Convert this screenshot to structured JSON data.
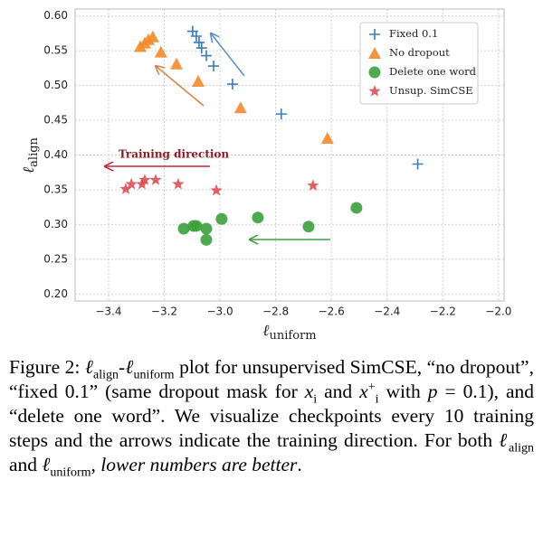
{
  "chart_data": {
    "type": "scatter",
    "xlabel": [
      "ℓ",
      "uniform"
    ],
    "ylabel": [
      "ℓ",
      "align"
    ],
    "xlim": [
      -3.52,
      -1.98
    ],
    "ylim": [
      0.19,
      0.61
    ],
    "xticks": [
      {
        "value": -3.4,
        "label": "−3.4"
      },
      {
        "value": -3.2,
        "label": "−3.2"
      },
      {
        "value": -3.0,
        "label": "−3.0"
      },
      {
        "value": -2.8,
        "label": "−2.8"
      },
      {
        "value": -2.6,
        "label": "−2.6"
      },
      {
        "value": -2.4,
        "label": "−2.4"
      },
      {
        "value": -2.2,
        "label": "−2.2"
      },
      {
        "value": -2.0,
        "label": "−2.0"
      }
    ],
    "yticks": [
      {
        "value": 0.2,
        "label": "0.20"
      },
      {
        "value": 0.25,
        "label": "0.25"
      },
      {
        "value": 0.3,
        "label": "0.30"
      },
      {
        "value": 0.35,
        "label": "0.35"
      },
      {
        "value": 0.4,
        "label": "0.40"
      },
      {
        "value": 0.45,
        "label": "0.45"
      },
      {
        "value": 0.5,
        "label": "0.50"
      },
      {
        "value": 0.55,
        "label": "0.55"
      },
      {
        "value": 0.6,
        "label": "0.60"
      }
    ],
    "grid": true,
    "legend": "upper right",
    "annotation": "Training direction",
    "series": [
      {
        "name": "Fixed 0.1",
        "color": "#3a7bbf",
        "marker": "plus",
        "x": [
          -3.098,
          -3.085,
          -3.075,
          -3.066,
          -3.049,
          -3.023,
          -2.955,
          -2.78,
          -2.29
        ],
        "values": [
          0.578,
          0.571,
          0.562,
          0.554,
          0.543,
          0.528,
          0.502,
          0.459,
          0.387
        ]
      },
      {
        "name": "No dropout",
        "color": "#f5892a",
        "marker": "triangle",
        "x": [
          -3.286,
          -3.27,
          -3.257,
          -3.241,
          -3.212,
          -3.156,
          -3.078,
          -2.926,
          -2.614
        ],
        "values": [
          0.556,
          0.561,
          0.566,
          0.57,
          0.548,
          0.531,
          0.506,
          0.468,
          0.424
        ]
      },
      {
        "name": "Delete one word",
        "color": "#3ca03c",
        "marker": "circle",
        "x": [
          -3.13,
          -3.095,
          -3.085,
          -3.049,
          -3.049,
          -2.994,
          -2.864,
          -2.682,
          -2.51
        ],
        "values": [
          0.294,
          0.298,
          0.298,
          0.294,
          0.278,
          0.308,
          0.31,
          0.297,
          0.324
        ]
      },
      {
        "name": "Unsup. SimCSE",
        "color": "#d9454b",
        "marker": "star",
        "x": [
          -3.338,
          -3.318,
          -3.28,
          -3.27,
          -3.231,
          -3.15,
          -3.013,
          -2.666
        ],
        "values": [
          0.351,
          0.358,
          0.358,
          0.364,
          0.364,
          0.358,
          0.349,
          0.356
        ]
      }
    ]
  },
  "caption": [
    {
      "t": "Figure 2: "
    },
    {
      "t": "ℓ",
      "s": "i"
    },
    {
      "t": "align",
      "s": "sub"
    },
    {
      "t": "-"
    },
    {
      "t": "ℓ",
      "s": "i"
    },
    {
      "t": "uniform",
      "s": "sub"
    },
    {
      "t": " plot for unsupervised SimCSE, “no dropout”, “fixed 0.1” (same dropout mask for "
    },
    {
      "t": "x",
      "s": "i"
    },
    {
      "t": "i",
      "s": "sub"
    },
    {
      "t": " and "
    },
    {
      "t": "x",
      "s": "i"
    },
    {
      "t": "+",
      "s": "sup"
    },
    {
      "t": "i",
      "s": "sub"
    },
    {
      "t": " with "
    },
    {
      "t": "p",
      "s": "i"
    },
    {
      "t": " = 0.1), and “delete one word”. We visualize checkpoints every 10 training steps and the arrows indicate the training direction. For both "
    },
    {
      "t": "ℓ",
      "s": "i"
    },
    {
      "t": "align",
      "s": "sub"
    },
    {
      "t": " and "
    },
    {
      "t": "ℓ",
      "s": "i"
    },
    {
      "t": "uniform",
      "s": "sub"
    },
    {
      "t": ", "
    },
    {
      "t": "lower numbers are better",
      "s": "i"
    },
    {
      "t": "."
    }
  ]
}
